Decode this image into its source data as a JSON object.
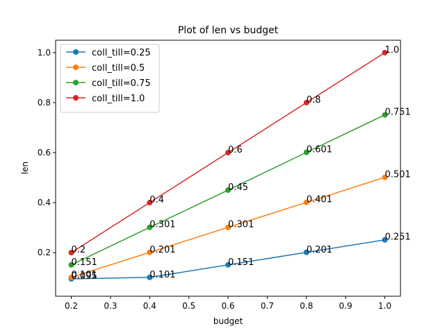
{
  "chart_data": {
    "type": "line",
    "title": "Plot of len vs budget",
    "xlabel": "budget",
    "ylabel": "len",
    "xlim": [
      0.16,
      1.04
    ],
    "ylim": [
      0.0255,
      1.0495
    ],
    "xticks": [
      0.2,
      0.3,
      0.4,
      0.5,
      0.6,
      0.7,
      0.8,
      0.9,
      1.0
    ],
    "xtick_labels": [
      "0.2",
      "0.3",
      "0.4",
      "0.5",
      "0.6",
      "0.7",
      "0.8",
      "0.9",
      "1.0"
    ],
    "yticks": [
      0.2,
      0.4,
      0.6,
      0.8,
      1.0
    ],
    "ytick_labels": [
      "0.2",
      "0.4",
      "0.6",
      "0.8",
      "1.0"
    ],
    "grid": false,
    "legend_position": "top-left",
    "x": [
      0.2,
      0.4,
      0.6,
      0.8,
      1.0
    ],
    "series": [
      {
        "name": "coll_till=0.25",
        "color": "#1f77b4",
        "values": [
          0.095,
          0.101,
          0.151,
          0.201,
          0.251
        ],
        "labels": [
          "0.095",
          "0.101",
          "0.151",
          "0.201",
          "0.251"
        ]
      },
      {
        "name": "coll_till=0.5",
        "color": "#ff7f0e",
        "values": [
          0.101,
          0.201,
          0.301,
          0.401,
          0.501
        ],
        "labels": [
          "0.101",
          "0.201",
          "0.301",
          "0.401",
          "0.501"
        ]
      },
      {
        "name": "coll_till=0.75",
        "color": "#2ca02c",
        "values": [
          0.151,
          0.301,
          0.45,
          0.601,
          0.751
        ],
        "labels": [
          "0.151",
          "0.301",
          "0.45",
          "0.601",
          "0.751"
        ]
      },
      {
        "name": "coll_till=1.0",
        "color": "#d62728",
        "values": [
          0.2,
          0.4,
          0.6,
          0.8,
          1.0
        ],
        "labels": [
          "0.2",
          "0.4",
          "0.6",
          "0.8",
          "1.0"
        ]
      }
    ]
  }
}
